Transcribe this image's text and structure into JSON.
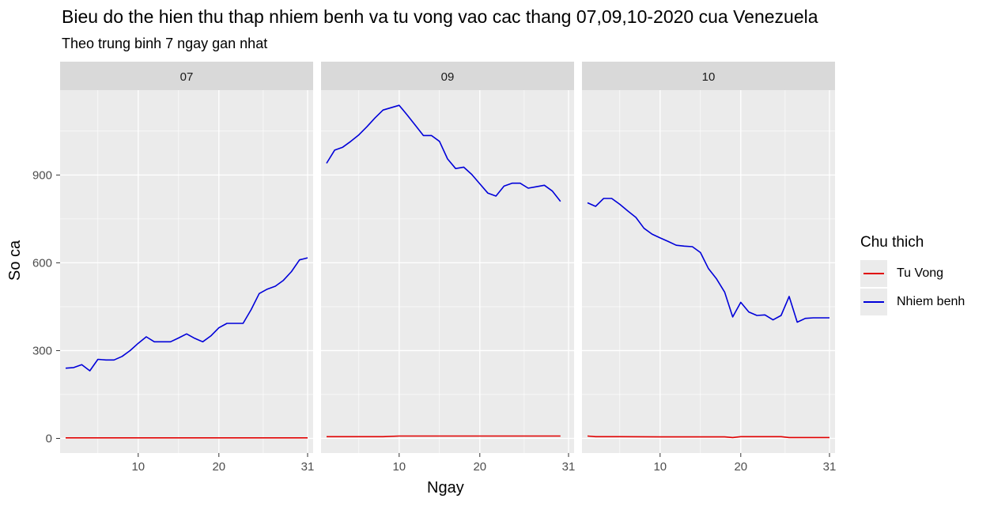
{
  "chart_data": {
    "type": "line",
    "title": "Bieu do the hien thu thap nhiem benh va tu vong vao cac thang 07,09,10-2020 cua Venezuela",
    "subtitle": "Theo trung binh 7 ngay gan nhat",
    "xlabel": "Ngay",
    "ylabel": "So ca",
    "ylim": [
      -50,
      1190
    ],
    "yticks": [
      0,
      300,
      600,
      900
    ],
    "ytick_labels": [
      "0",
      "300",
      "600",
      "900"
    ],
    "xticks": [
      10,
      20,
      31
    ],
    "xtick_labels": [
      "10",
      "20",
      "31"
    ],
    "grid": true,
    "legend": {
      "title": "Chu thich",
      "placement": "right",
      "entries": [
        {
          "name": "Tu Vong",
          "color": "#e00000"
        },
        {
          "name": "Nhiem benh",
          "color": "#0000d9"
        }
      ]
    },
    "facets": [
      {
        "label": "07",
        "xlim": [
          1,
          31
        ],
        "series": [
          {
            "name": "Tu Vong",
            "color": "#e00000",
            "x": [
              1,
              2,
              3,
              4,
              5,
              6,
              7,
              8,
              9,
              10,
              11,
              12,
              13,
              14,
              15,
              16,
              17,
              18,
              19,
              20,
              21,
              22,
              23,
              24,
              25,
              26,
              27,
              28,
              29,
              30,
              31
            ],
            "y": [
              2,
              2,
              2,
              2,
              2,
              2,
              2,
              2,
              2,
              2,
              2,
              2,
              2,
              2,
              2,
              2,
              2,
              2,
              2,
              2,
              2,
              2,
              2,
              2,
              2,
              2,
              2,
              2,
              2,
              2,
              2
            ]
          },
          {
            "name": "Nhiem benh",
            "color": "#0000d9",
            "x": [
              1,
              2,
              3,
              4,
              5,
              6,
              7,
              8,
              9,
              10,
              11,
              12,
              13,
              14,
              15,
              16,
              17,
              18,
              19,
              20,
              21,
              22,
              23,
              24,
              25,
              26,
              27,
              28,
              29,
              30,
              31
            ],
            "y": [
              240,
              242,
              252,
              231,
              270,
              268,
              268,
              280,
              300,
              325,
              347,
              330,
              330,
              330,
              343,
              357,
              342,
              330,
              350,
              378,
              393,
              393,
              393,
              440,
              495,
              510,
              520,
              540,
              570,
              610,
              617
            ]
          }
        ]
      },
      {
        "label": "09",
        "xlim": [
          1,
          31
        ],
        "series": [
          {
            "name": "Tu Vong",
            "color": "#e00000",
            "x": [
              1,
              5,
              8,
              10,
              15,
              20,
              25,
              30
            ],
            "y": [
              6,
              6,
              6,
              8,
              8,
              8,
              8,
              8
            ]
          },
          {
            "name": "Nhiem benh",
            "color": "#0000d9",
            "x": [
              1,
              2,
              3,
              4,
              5,
              6,
              7,
              8,
              9,
              10,
              11,
              12,
              13,
              14,
              15,
              16,
              17,
              18,
              19,
              20,
              21,
              22,
              23,
              24,
              25,
              26,
              27,
              28,
              29,
              30
            ],
            "y": [
              940,
              985,
              995,
              1015,
              1037,
              1065,
              1095,
              1122,
              1130,
              1138,
              1105,
              1070,
              1035,
              1035,
              1015,
              955,
              922,
              927,
              902,
              870,
              838,
              828,
              862,
              872,
              872,
              855,
              860,
              865,
              845,
              810
            ]
          }
        ]
      },
      {
        "label": "10",
        "xlim": [
          1,
          31
        ],
        "series": [
          {
            "name": "Tu Vong",
            "color": "#e00000",
            "x": [
              1,
              2,
              5,
              10,
              15,
              18,
              19,
              20,
              25,
              26,
              31
            ],
            "y": [
              8,
              6,
              6,
              5,
              5,
              5,
              3,
              6,
              6,
              3,
              3
            ]
          },
          {
            "name": "Nhiem benh",
            "color": "#0000d9",
            "x": [
              1,
              2,
              3,
              4,
              5,
              6,
              7,
              8,
              9,
              10,
              11,
              12,
              13,
              14,
              15,
              16,
              17,
              18,
              19,
              20,
              21,
              22,
              23,
              24,
              25,
              26,
              27,
              28,
              29,
              30,
              31
            ],
            "y": [
              805,
              793,
              820,
              820,
              800,
              777,
              755,
              718,
              698,
              685,
              673,
              660,
              657,
              655,
              635,
              580,
              545,
              500,
              415,
              465,
              432,
              420,
              422,
              405,
              420,
              485,
              397,
              410,
              412,
              412,
              412
            ]
          }
        ]
      }
    ]
  }
}
